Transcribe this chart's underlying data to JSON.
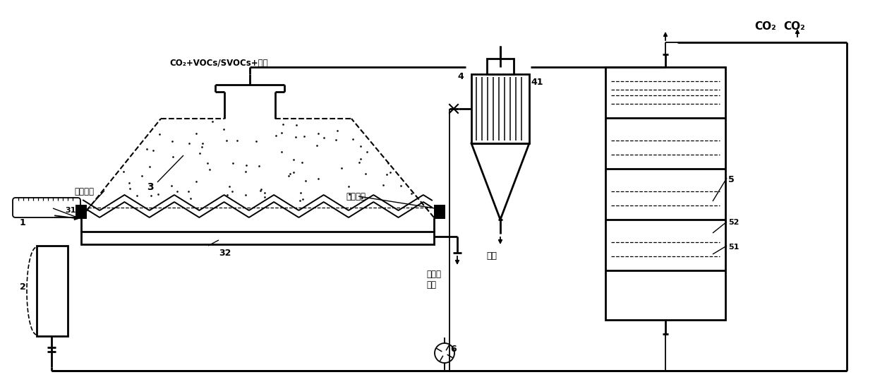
{
  "bg_color": "#ffffff",
  "lc": "#000000",
  "title_co2": "CO₂",
  "label_soil_left": "污染土壤",
  "label_soil_right": "污染土壤",
  "label_gas": "CO₂+VOCs/SVOCs+粉尘",
  "label_dust": "粉尘",
  "label_clean": "净化后\n土壤",
  "n1": "1",
  "n2": "2",
  "n3": "3",
  "n31": "31",
  "n32": "32",
  "n4": "4",
  "n41": "41",
  "n5": "5",
  "n51": "51",
  "n52": "52",
  "n6": "6"
}
